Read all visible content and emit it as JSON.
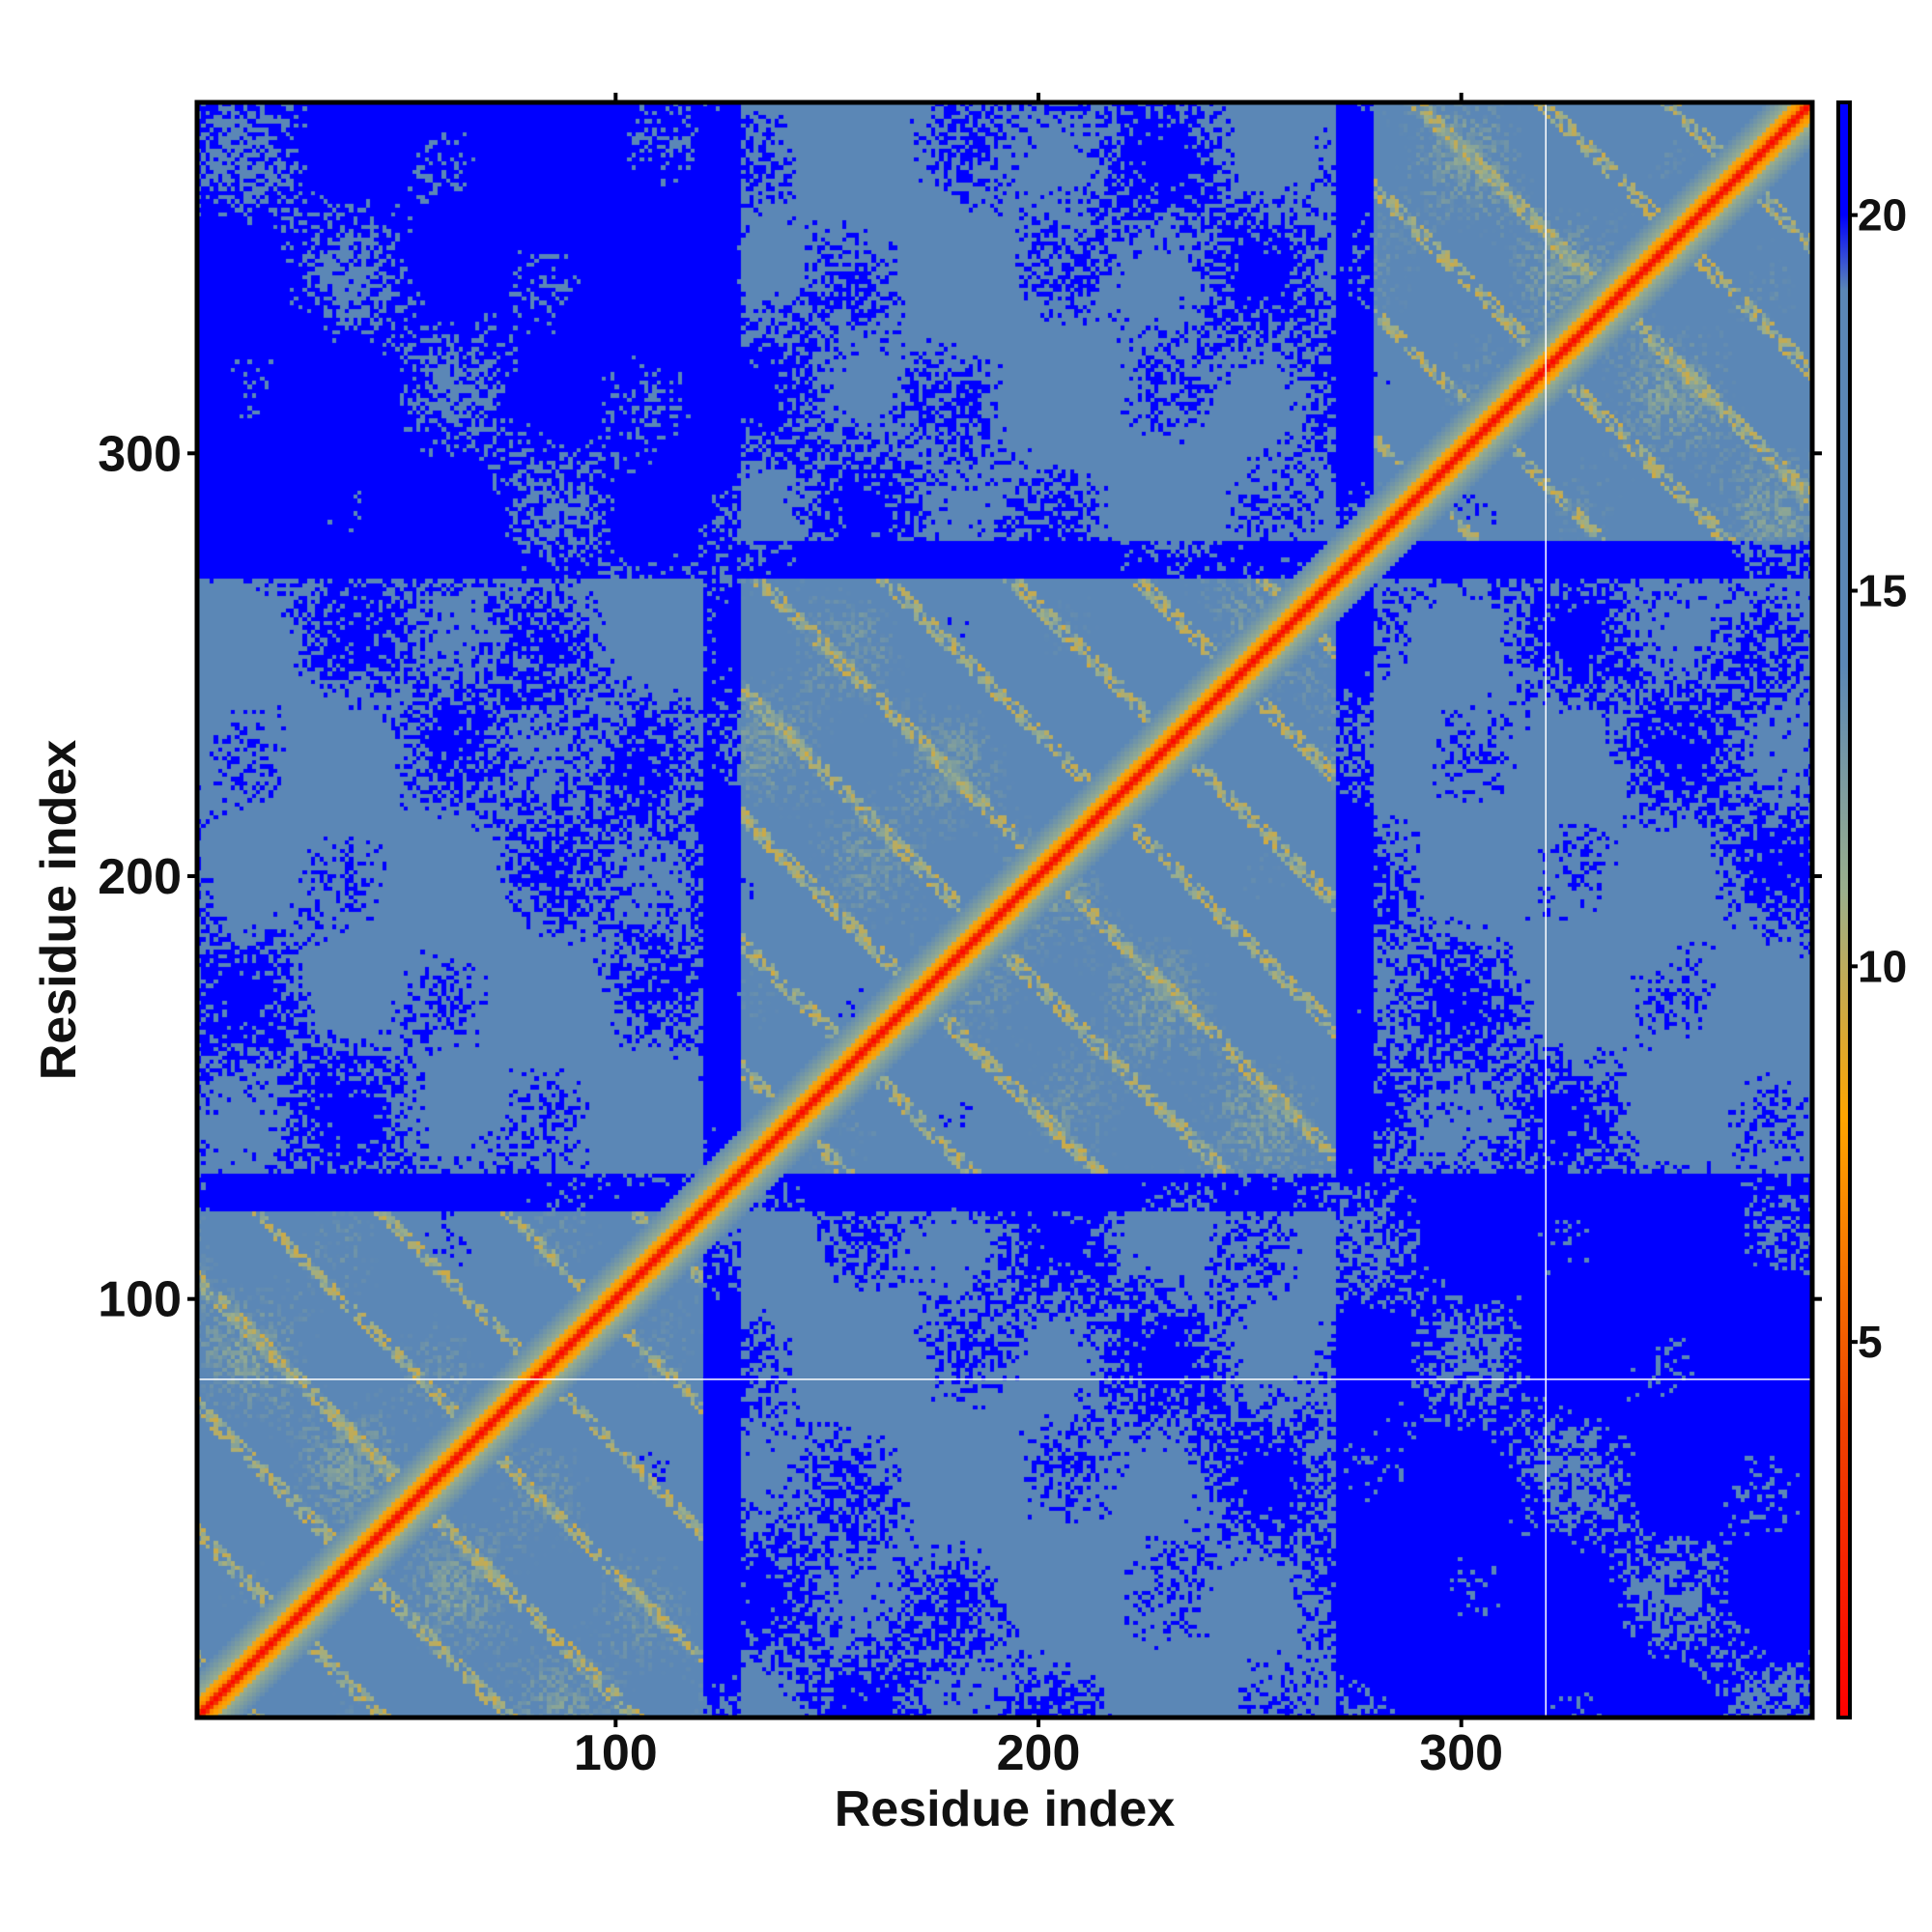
{
  "chart_data": {
    "type": "heatmap",
    "title": "",
    "xlabel": "Residue index",
    "ylabel": "Residue index",
    "xlim": [
      1,
      383
    ],
    "ylim": [
      1,
      383
    ],
    "x_ticks": [
      100,
      200,
      300
    ],
    "y_ticks": [
      100,
      200,
      300
    ],
    "colorbar": {
      "range": [
        0,
        21.5
      ],
      "ticks": [
        5,
        10,
        15,
        20
      ],
      "colors": [
        {
          "value": 0,
          "color": "#ff0000"
        },
        {
          "value": 4,
          "color": "#ee4400"
        },
        {
          "value": 8,
          "color": "#ffa500"
        },
        {
          "value": 11,
          "color": "#9aaf8c"
        },
        {
          "value": 14,
          "color": "#5b87b6"
        },
        {
          "value": 19,
          "color": "#5b87b6"
        },
        {
          "value": 20,
          "color": "#0000ff"
        }
      ]
    },
    "matrix_description": "symmetric residue-residue distance map; near-zero values along the main diagonal",
    "domains": [
      [
        1,
        120
      ],
      [
        130,
        270
      ],
      [
        280,
        383
      ]
    ],
    "guide_lines": {
      "x": 320,
      "y": 81
    },
    "grid": false,
    "legend": "none"
  }
}
